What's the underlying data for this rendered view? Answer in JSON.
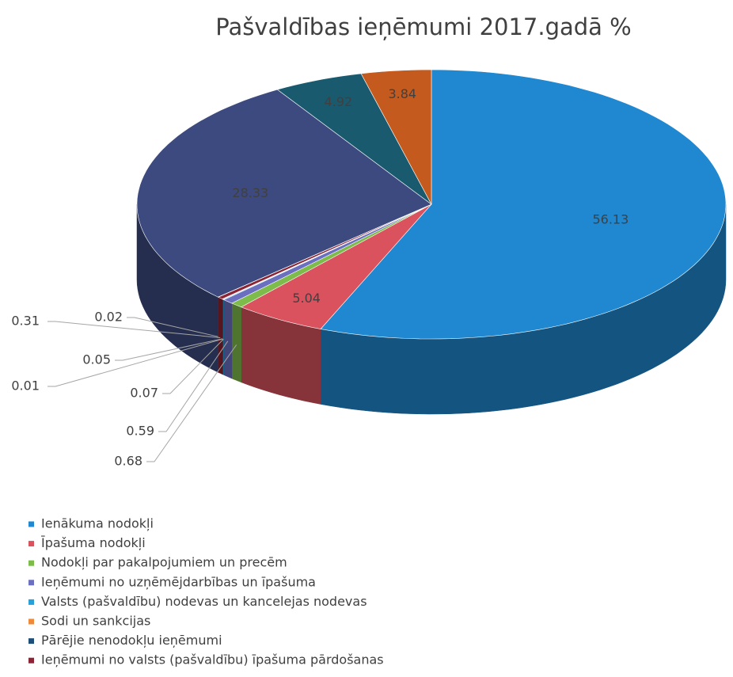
{
  "chart_data": {
    "type": "pie3d",
    "title": "Pašvaldības ieņēmumi 2017.gadā %",
    "categories": [
      "Ienākuma nodokļi",
      "Īpašuma nodokļi",
      "Nodokļi par pakalpojumiem un precēm",
      "Ieņēmumi no uzņēmējdarbības un īpašuma",
      "Valsts (pašvaldību) nodevas un kancelejas nodevas",
      "Sodi un sankcijas",
      "Pārējie nenodokļu ieņēmumi",
      "Ieņēmumi no valsts (pašvaldību) īpašuma pārdošanas",
      null,
      null,
      null,
      null
    ],
    "values": [
      56.13,
      5.04,
      0.68,
      0.59,
      0.07,
      0.01,
      0.05,
      0.31,
      0.02,
      28.33,
      4.92,
      3.84
    ],
    "colors": [
      "#1f88d0",
      "#d9525e",
      "#7dbb4b",
      "#6a6fc0",
      "#2aa0d8",
      "#ef8a3a",
      "#1f4e79",
      "#8b2434",
      "#4b6b2a",
      "#3d4a7f",
      "#1a5a6e",
      "#c45a1e"
    ],
    "legend": "bottom-left"
  }
}
